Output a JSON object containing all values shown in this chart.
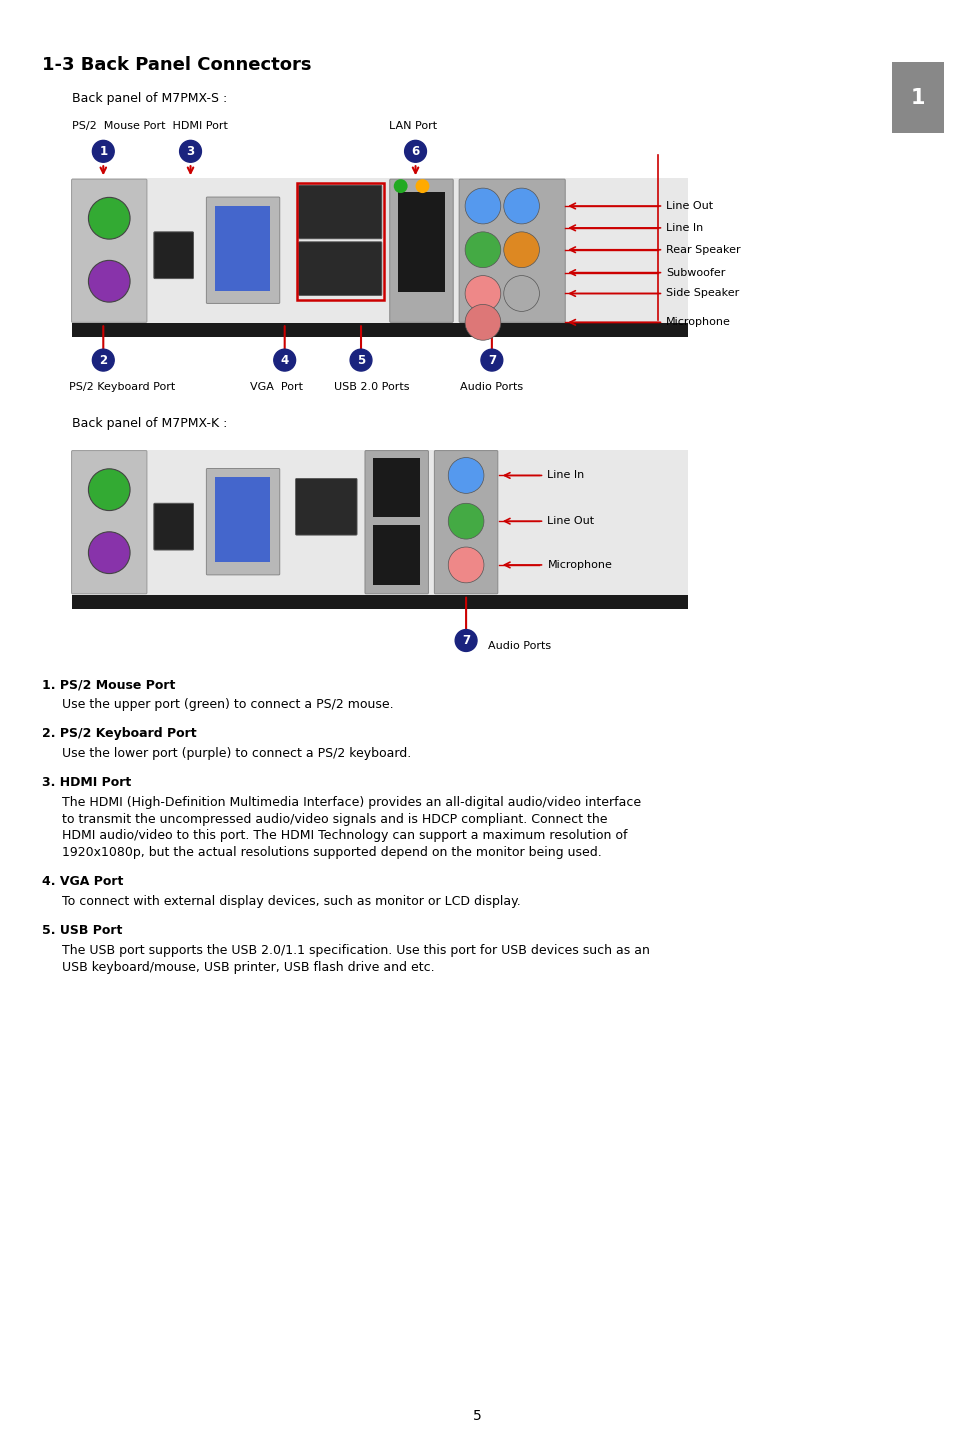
{
  "title": "1-3 Back Panel Connectors",
  "bg_color": "#ffffff",
  "page_number": "5",
  "title_fontsize": 13,
  "body_fontsize": 9,
  "label_fontsize": 8,
  "sublabel_fontsize": 9,
  "badge_color": "#1a237e",
  "arrow_color": "#cc0000",
  "panel_s_label": "Back panel of M7PMX-S :",
  "panel_k_label": "Back panel of M7PMX-K :",
  "sidebar_color": "#777777",
  "sidebar_text": "1"
}
